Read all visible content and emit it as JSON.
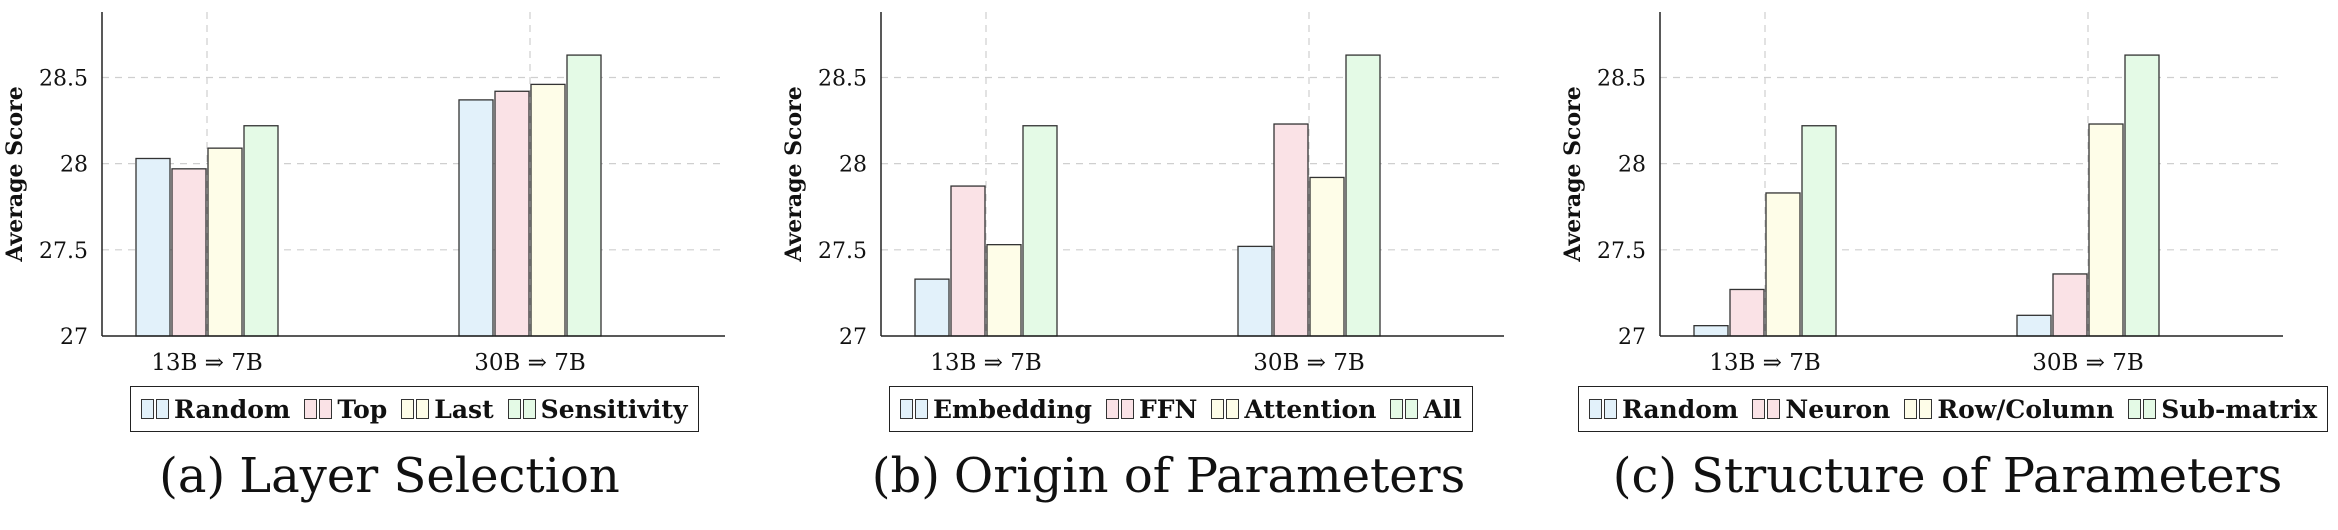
{
  "chart_data": [
    {
      "type": "bar",
      "caption_label": "(a)",
      "caption": "Layer Selection",
      "ylabel": "Average Score",
      "categories": [
        "13B ⇒ 7B",
        "30B ⇒ 7B"
      ],
      "series": [
        {
          "name": "Random",
          "color": "#e2f1fa",
          "values": [
            28.03,
            28.37
          ]
        },
        {
          "name": "Top",
          "color": "#fae2e6",
          "values": [
            27.97,
            28.42
          ]
        },
        {
          "name": "Last",
          "color": "#fefde8",
          "values": [
            28.09,
            28.46
          ]
        },
        {
          "name": "Sensitivity",
          "color": "#e4fae6",
          "values": [
            28.22,
            28.63
          ]
        }
      ],
      "yticks": [
        "27",
        "27.5",
        "28",
        "28.5"
      ],
      "ylim": [
        27,
        28.88
      ],
      "grid": true,
      "legend_position": "bottom"
    },
    {
      "type": "bar",
      "caption_label": "(b)",
      "caption": "Origin of Parameters",
      "ylabel": "Average Score",
      "categories": [
        "13B ⇒ 7B",
        "30B ⇒ 7B"
      ],
      "series": [
        {
          "name": "Embedding",
          "color": "#e2f1fa",
          "values": [
            27.33,
            27.52
          ]
        },
        {
          "name": "FFN",
          "color": "#fae2e6",
          "values": [
            27.87,
            28.23
          ]
        },
        {
          "name": "Attention",
          "color": "#fefde8",
          "values": [
            27.53,
            27.92
          ]
        },
        {
          "name": "All",
          "color": "#e4fae6",
          "values": [
            28.22,
            28.63
          ]
        }
      ],
      "yticks": [
        "27",
        "27.5",
        "28",
        "28.5"
      ],
      "ylim": [
        27,
        28.88
      ],
      "grid": true,
      "legend_position": "bottom"
    },
    {
      "type": "bar",
      "caption_label": "(c)",
      "caption": "Structure of Parameters",
      "ylabel": "Average Score",
      "categories": [
        "13B ⇒ 7B",
        "30B ⇒ 7B"
      ],
      "series": [
        {
          "name": "Random",
          "color": "#e2f1fa",
          "values": [
            27.06,
            27.12
          ]
        },
        {
          "name": "Neuron",
          "color": "#fae2e6",
          "values": [
            27.27,
            27.36
          ]
        },
        {
          "name": "Row/Column",
          "color": "#fefde8",
          "values": [
            27.83,
            28.23
          ]
        },
        {
          "name": "Sub-matrix",
          "color": "#e4fae6",
          "values": [
            28.22,
            28.63
          ]
        }
      ],
      "yticks": [
        "27",
        "27.5",
        "28",
        "28.5"
      ],
      "ylim": [
        27,
        28.88
      ],
      "grid": true,
      "legend_position": "bottom"
    }
  ]
}
